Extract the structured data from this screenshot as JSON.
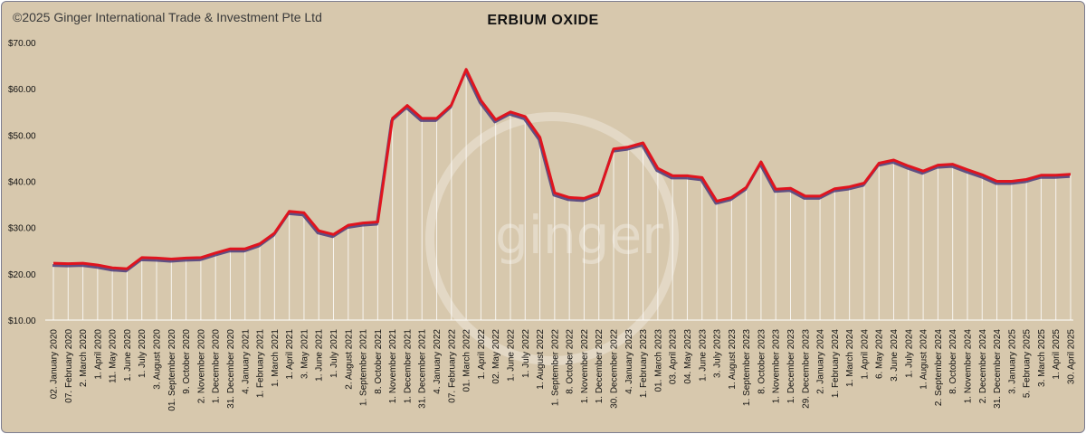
{
  "copyright": "©2025 Ginger International Trade & Investment Pte Ltd",
  "watermark": "ginger",
  "colors": {
    "background": "#d7c8ad",
    "line": "#e0141e",
    "shadow": "#4a3a7a",
    "drop": "#ffffff"
  },
  "chart_data": {
    "type": "line",
    "title": "ERBIUM OXIDE",
    "xlabel": "",
    "ylabel": "",
    "ylim": [
      10,
      70
    ],
    "yticks": [
      "$10.00",
      "$20.00",
      "$30.00",
      "$40.00",
      "$50.00",
      "$60.00",
      "$70.00"
    ],
    "grid": false,
    "legend": "none",
    "tick_labels": [
      "02. January 2020",
      "07. February 2020",
      "2. March 2020",
      "1. April 2020",
      "11. May 2020",
      "1. June 2020",
      "1. July 2020",
      "3. August 2020",
      "01. September 2020",
      "9. October 2020",
      "2. November 2020",
      "1. December 2020",
      "31. December 2020",
      "4. January 2021",
      "1. February 2021",
      "1. March 2021",
      "1. April 2021",
      "3. May 2021",
      "1. June 2021",
      "1. July 2021",
      "2. August 2021",
      "1. September 2021",
      "8. October 2021",
      "1. November 2021",
      "1. December 2021",
      "31. December 2021",
      "4. January 2022",
      "07. February 2022",
      "01. March 2022",
      "1. April 2022",
      "02. May 2022",
      "1. June 2022",
      "1. July 2022",
      "1. August 2022",
      "1. September 2022",
      "8. October 2022",
      "1. November 2022",
      "1. December 2022",
      "30. December 2022",
      "4. January 2023",
      "1. February 2023",
      "01. March 2023",
      "03. April 2023",
      "04. May 2023",
      "1. June 2023",
      "3. July 2023",
      "1. August 2023",
      "1. September 2023",
      "8. October 2023",
      "1. November 2023",
      "1. December 2023",
      "29. December 2023",
      "2. January 2024",
      "1. February 2024",
      "1. March 2024",
      "1. April 2024",
      "6. May 2024",
      "3. June 2024",
      "1. July 2024",
      "1. August 2024",
      "2. September 2024",
      "8. October 2024",
      "1. November 2024",
      "2. December 2024",
      "31. December 2024",
      "3. January 2025",
      "5. February 2025",
      "3. March 2025",
      "1. April 2025",
      "30. April 2025"
    ],
    "series": [
      {
        "values": [
          22.3,
          22.2,
          22.3,
          21.9,
          21.3,
          21.1,
          23.5,
          23.4,
          23.2,
          23.4,
          23.5,
          24.5,
          25.4,
          25.4,
          26.5,
          28.8,
          33.5,
          33.2,
          29.3,
          28.5,
          30.5,
          31.0,
          31.2,
          53.6,
          56.4,
          53.6,
          53.6,
          56.5,
          64.2,
          57.5,
          53.3,
          55.0,
          54.0,
          49.5,
          37.5,
          36.5,
          36.3,
          37.5,
          47.0,
          47.4,
          48.3,
          42.8,
          41.2,
          41.2,
          40.8,
          35.7,
          36.5,
          38.7,
          44.2,
          38.3,
          38.5,
          36.8,
          36.8,
          38.4,
          38.8,
          39.6,
          43.9,
          44.6,
          43.3,
          42.2,
          43.5,
          43.7,
          42.5,
          41.4,
          40.0,
          40.0,
          40.4,
          41.3,
          41.3,
          41.5
        ]
      }
    ]
  }
}
